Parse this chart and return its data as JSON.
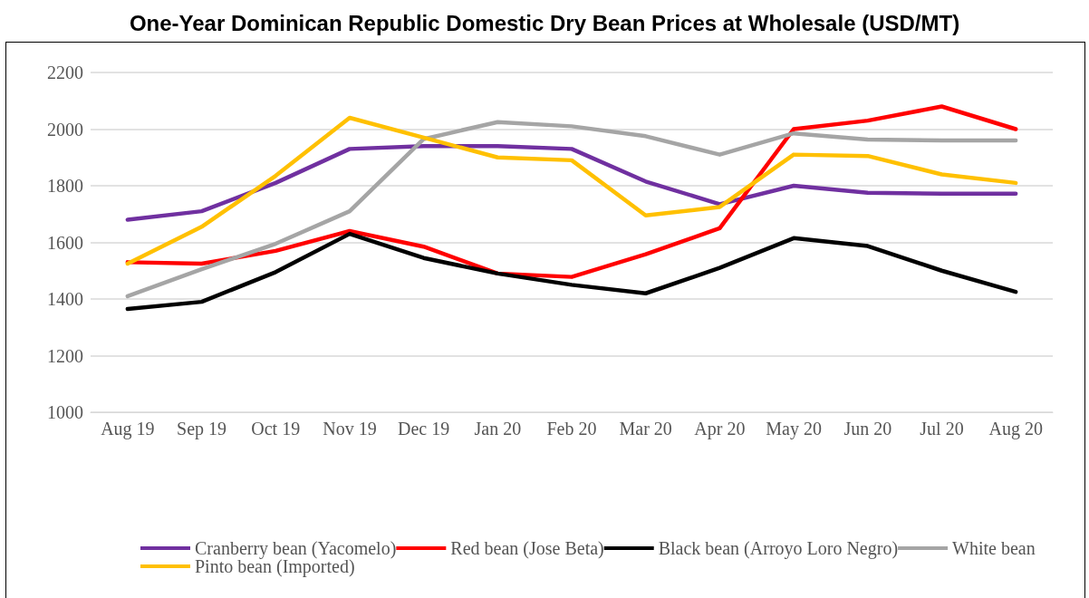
{
  "chart_data": {
    "type": "line",
    "title": "One-Year Dominican Republic Domestic Dry Bean Prices at Wholesale (USD/MT)",
    "categories": [
      "Aug 19",
      "Sep 19",
      "Oct 19",
      "Nov 19",
      "Dec 19",
      "Jan 20",
      "Feb 20",
      "Mar 20",
      "Apr 20",
      "May 20",
      "Jun 20",
      "Jul 20",
      "Aug 20"
    ],
    "series": [
      {
        "name": "Cranberry bean (Yacomelo)",
        "color": "#7030a0",
        "values": [
          1680,
          1710,
          1810,
          1930,
          1940,
          1940,
          1930,
          1815,
          1735,
          1800,
          1775,
          1772,
          1772
        ]
      },
      {
        "name": "Red bean (Jose Beta)",
        "color": "#ff0000",
        "values": [
          1530,
          1525,
          1570,
          1640,
          1585,
          1490,
          1478,
          1558,
          1650,
          2000,
          2030,
          2080,
          2000
        ]
      },
      {
        "name": "Black bean (Arroyo Loro Negro)",
        "color": "#000000",
        "values": [
          1365,
          1390,
          1495,
          1630,
          1545,
          1490,
          1450,
          1420,
          1510,
          1615,
          1587,
          1500,
          1425
        ]
      },
      {
        "name": "White bean",
        "color": "#a5a5a5",
        "values": [
          1410,
          1505,
          1595,
          1710,
          1965,
          2025,
          2010,
          1975,
          1910,
          1985,
          1963,
          1960,
          1960
        ]
      },
      {
        "name": "Pinto bean (Imported)",
        "color": "#ffc000",
        "values": [
          1525,
          1655,
          1835,
          2040,
          1970,
          1900,
          1890,
          1695,
          1725,
          1910,
          1905,
          1840,
          1810
        ]
      }
    ],
    "ylim": [
      1000,
      2200
    ],
    "yticks": [
      1000,
      1200,
      1400,
      1600,
      1800,
      2000,
      2200
    ],
    "grid": "y",
    "legend": "bottom",
    "marker": "none",
    "line_style": "solid"
  }
}
